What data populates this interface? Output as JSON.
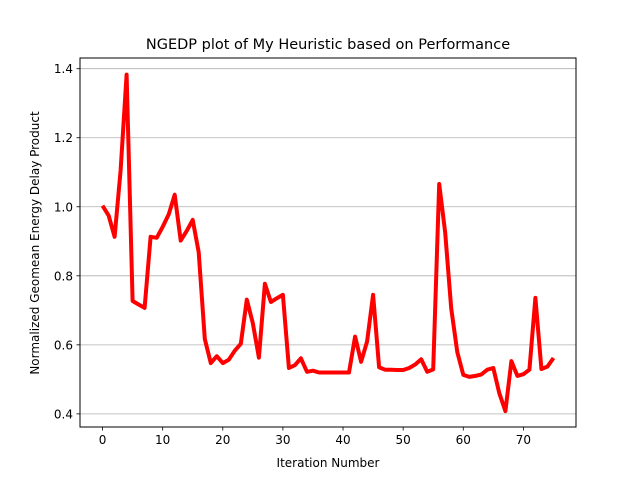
{
  "chart_data": {
    "type": "line",
    "title": "NGEDP plot of My Heuristic based on Performance",
    "xlabel": "Iteration Number",
    "ylabel": "Normalized Geomean Energy Delay Product",
    "xlim": [
      -3.75,
      78.75
    ],
    "ylim": [
      0.362,
      1.431
    ],
    "xticks": [
      0,
      10,
      20,
      30,
      40,
      50,
      60,
      70
    ],
    "yticks": [
      0.4,
      0.6,
      0.8,
      1.0,
      1.2,
      1.4
    ],
    "ytick_labels": [
      "0.4",
      "0.6",
      "0.8",
      "1.0",
      "1.2",
      "1.4"
    ],
    "grid": "horizontal",
    "line_color": "#ff0000",
    "series": [
      {
        "x": [
          0,
          1,
          2,
          3,
          4,
          5,
          6,
          7,
          8,
          9,
          10,
          11,
          12,
          13,
          14,
          15,
          16,
          17,
          18,
          19,
          20,
          21,
          22,
          23,
          24,
          25,
          26,
          27,
          28,
          29,
          30,
          31,
          32,
          33,
          34,
          35,
          36,
          37,
          38,
          39,
          40,
          41,
          42,
          43,
          44,
          45,
          46,
          47,
          48,
          49,
          50,
          51,
          52,
          53,
          54,
          55,
          56,
          57,
          58,
          59,
          60,
          61,
          62,
          63,
          64,
          65,
          66,
          67,
          68,
          69,
          70,
          71,
          72,
          73,
          74,
          75
        ],
        "values": [
          1.003,
          0.975,
          0.913,
          1.105,
          1.383,
          0.727,
          0.717,
          0.707,
          0.913,
          0.91,
          0.942,
          0.978,
          1.035,
          0.902,
          0.93,
          0.962,
          0.868,
          0.617,
          0.547,
          0.567,
          0.547,
          0.557,
          0.583,
          0.603,
          0.731,
          0.663,
          0.563,
          0.777,
          0.724,
          0.735,
          0.745,
          0.533,
          0.541,
          0.561,
          0.522,
          0.525,
          0.52,
          0.52,
          0.52,
          0.52,
          0.52,
          0.52,
          0.624,
          0.551,
          0.61,
          0.745,
          0.535,
          0.528,
          0.528,
          0.527,
          0.527,
          0.533,
          0.543,
          0.558,
          0.522,
          0.529,
          1.066,
          0.925,
          0.706,
          0.579,
          0.513,
          0.507,
          0.51,
          0.514,
          0.528,
          0.533,
          0.46,
          0.408,
          0.553,
          0.51,
          0.515,
          0.528,
          0.736,
          0.53,
          0.537,
          0.562
        ]
      }
    ]
  }
}
